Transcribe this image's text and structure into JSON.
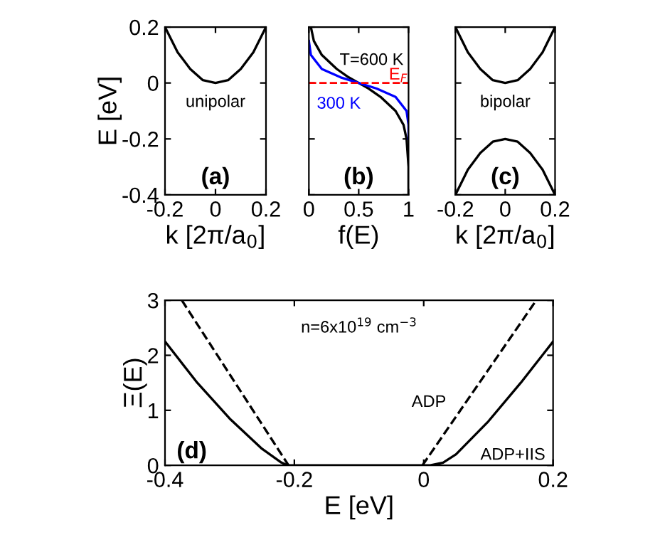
{
  "chart_data": [
    {
      "type": "line",
      "xlabel": "k [2π/a$_{0}$]",
      "ylabel": "E [eV]",
      "annotations": [
        "unipolar",
        "(a)"
      ],
      "xlim": [
        -0.2,
        0.2
      ],
      "ylim": [
        -0.4,
        0.2
      ],
      "xticks": [
        -0.2,
        0,
        0.2
      ],
      "yticks": [
        -0.4,
        -0.2,
        0,
        0.2
      ],
      "grid": false,
      "legend": false,
      "series": [
        {
          "color": "#000000",
          "line_style": "solid",
          "x": [
            -0.2,
            -0.15,
            -0.1,
            -0.05,
            0,
            0.05,
            0.1,
            0.15,
            0.2
          ],
          "values": [
            0.2,
            0.11,
            0.05,
            0.01,
            0,
            0.01,
            0.05,
            0.11,
            0.2
          ]
        }
      ]
    },
    {
      "type": "line",
      "xlabel": "f(E)",
      "annotations": [
        "(b)"
      ],
      "tick_labels": "x",
      "xlim": [
        0,
        1
      ],
      "ylim": [
        -0.4,
        0.2
      ],
      "xticks": [
        0,
        0.5,
        1
      ],
      "yticks": [
        {
          "value": -0.4,
          "label": null
        },
        {
          "value": -0.2,
          "label": null
        },
        {
          "value": 0,
          "label": null
        },
        {
          "value": 0.2,
          "label": null
        }
      ],
      "grid": false,
      "legend": false,
      "ref_lines": [
        {
          "axis": "y",
          "value": 0,
          "label": "E$_{F}$",
          "color": "#ff0000",
          "line_style": "dashed"
        }
      ],
      "series": [
        {
          "name": "T=600 K",
          "color": "#000000",
          "line_style": "solid",
          "x": [
            0.02,
            0.05,
            0.13,
            0.28,
            0.4,
            0.5,
            0.6,
            0.72,
            0.87,
            0.95,
            0.98,
            1.0,
            1.0
          ],
          "values": [
            0.2,
            0.15,
            0.1,
            0.05,
            0.02,
            0,
            -0.02,
            -0.05,
            -0.1,
            -0.15,
            -0.2,
            -0.3,
            -0.4
          ]
        },
        {
          "name": "300 K",
          "color": "#0000ff",
          "line_style": "solid",
          "x": [
            0.0,
            0.02,
            0.13,
            0.32,
            0.5,
            0.68,
            0.87,
            0.98,
            1.0,
            1.0
          ],
          "values": [
            0.15,
            0.1,
            0.05,
            0.02,
            0,
            -0.02,
            -0.05,
            -0.1,
            -0.15,
            -0.2
          ]
        }
      ]
    },
    {
      "type": "line",
      "xlabel": "k [2π/a$_{0}$]",
      "annotations": [
        "bipolar",
        "(c)"
      ],
      "tick_labels": "x",
      "xlim": [
        -0.2,
        0.2
      ],
      "ylim": [
        -0.4,
        0.2
      ],
      "xticks": [
        -0.2,
        0,
        0.2
      ],
      "yticks": [
        {
          "value": -0.4,
          "label": null
        },
        {
          "value": -0.2,
          "label": null
        },
        {
          "value": 0,
          "label": null
        },
        {
          "value": 0.2,
          "label": null
        }
      ],
      "grid": false,
      "legend": false,
      "series": [
        {
          "color": "#000000",
          "line_style": "solid",
          "x": [
            -0.2,
            -0.15,
            -0.1,
            -0.05,
            0,
            0.05,
            0.1,
            0.15,
            0.2
          ],
          "values": [
            0.2,
            0.11,
            0.05,
            0.01,
            0,
            0.01,
            0.05,
            0.11,
            0.2
          ]
        },
        {
          "color": "#000000",
          "line_style": "solid",
          "x": [
            -0.2,
            -0.15,
            -0.1,
            -0.05,
            0,
            0.05,
            0.1,
            0.15,
            0.2
          ],
          "values": [
            -0.4,
            -0.31,
            -0.25,
            -0.21,
            -0.2,
            -0.21,
            -0.25,
            -0.31,
            -0.4
          ]
        }
      ]
    },
    {
      "type": "line",
      "xlabel": "E [eV]",
      "ylabel": "Ξ(E)",
      "annotations": [
        "n=6x10$^{19}$ cm$^{−3}$",
        "(d)"
      ],
      "xlim": [
        -0.4,
        0.2
      ],
      "ylim": [
        0,
        3
      ],
      "xticks": [
        -0.4,
        -0.2,
        0,
        0.2
      ],
      "yticks": [
        0,
        1,
        2,
        3
      ],
      "grid": false,
      "legend": false,
      "series": [
        {
          "name": "ADP",
          "color": "#000000",
          "line_style": "dashed",
          "x": [
            -0.374,
            -0.209,
            -0.1,
            -0.002,
            0.174
          ],
          "values": [
            3,
            0,
            null,
            0,
            3
          ]
        },
        {
          "name": "ADP+IIS",
          "color": "#000000",
          "line_style": "solid",
          "x": [
            -0.4,
            -0.35,
            -0.3,
            -0.25,
            -0.22,
            -0.21,
            0.01,
            0.03,
            0.05,
            0.1,
            0.15,
            0.2
          ],
          "values": [
            2.25,
            1.5,
            0.85,
            0.3,
            0.05,
            0,
            0,
            0.05,
            0.2,
            0.8,
            1.5,
            2.25
          ]
        }
      ]
    }
  ]
}
